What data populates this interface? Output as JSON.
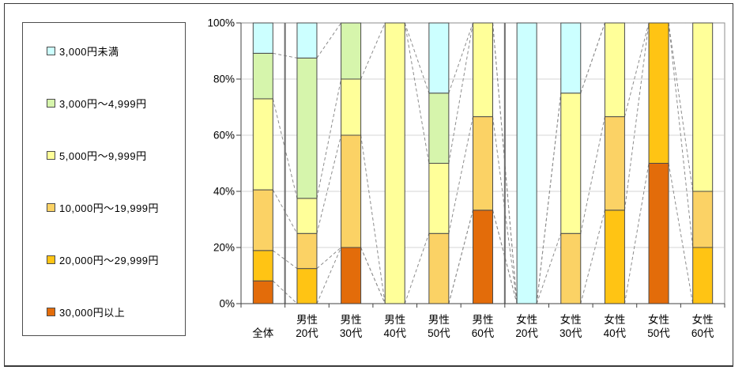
{
  "chart_data": {
    "type": "bar",
    "subtype": "100% stacked column with dashed series lines",
    "title": "",
    "xlabel": "",
    "ylabel": "",
    "y_ticks": [
      "0%",
      "20%",
      "40%",
      "60%",
      "80%",
      "100%"
    ],
    "ylim": [
      0,
      100
    ],
    "grid": true,
    "legend_position": "left",
    "categories": [
      {
        "line1": "",
        "line2": "全体"
      },
      {
        "line1": "男性",
        "line2": "20代"
      },
      {
        "line1": "男性",
        "line2": "30代"
      },
      {
        "line1": "男性",
        "line2": "40代"
      },
      {
        "line1": "男性",
        "line2": "50代"
      },
      {
        "line1": "男性",
        "line2": "60代"
      },
      {
        "line1": "女性",
        "line2": "20代"
      },
      {
        "line1": "女性",
        "line2": "30代"
      },
      {
        "line1": "女性",
        "line2": "40代"
      },
      {
        "line1": "女性",
        "line2": "50代"
      },
      {
        "line1": "女性",
        "line2": "60代"
      }
    ],
    "series": [
      {
        "name": "3,000円未満",
        "color": "#CCFFFF",
        "values": [
          10.8,
          12.5,
          0,
          0,
          25,
          0,
          100,
          25,
          0,
          0,
          0
        ]
      },
      {
        "name": "3,000円～4,999円",
        "color": "#D6F5AC",
        "values": [
          16.2,
          50,
          20,
          0,
          25,
          0,
          0,
          0,
          0,
          0,
          0
        ]
      },
      {
        "name": "5,000円～9,999円",
        "color": "#FFFF99",
        "values": [
          32.4,
          12.5,
          20,
          100,
          25,
          33.4,
          0,
          50,
          33.4,
          0,
          60
        ]
      },
      {
        "name": "10,000円～19,999円",
        "color": "#FBD265",
        "values": [
          21.6,
          12.5,
          40,
          0,
          25,
          33.3,
          0,
          25,
          33.3,
          0,
          20
        ]
      },
      {
        "name": "20,000円～29,999円",
        "color": "#FFC414",
        "values": [
          10.8,
          12.5,
          0,
          0,
          0,
          0,
          0,
          0,
          33.3,
          50,
          20
        ]
      },
      {
        "name": "30,000円以上",
        "color": "#E36C0A",
        "values": [
          8.1,
          0,
          20,
          0,
          0,
          33.3,
          0,
          0,
          0,
          50,
          0
        ]
      }
    ],
    "stacking": "series listed top-to-bottom as in legend; last series (30,000円以上) sits at the bottom of each bar",
    "separators_after_category_index": [
      0,
      5
    ],
    "series_lines_style": "dashed gray connectors joining segment boundaries of adjacent bars"
  }
}
